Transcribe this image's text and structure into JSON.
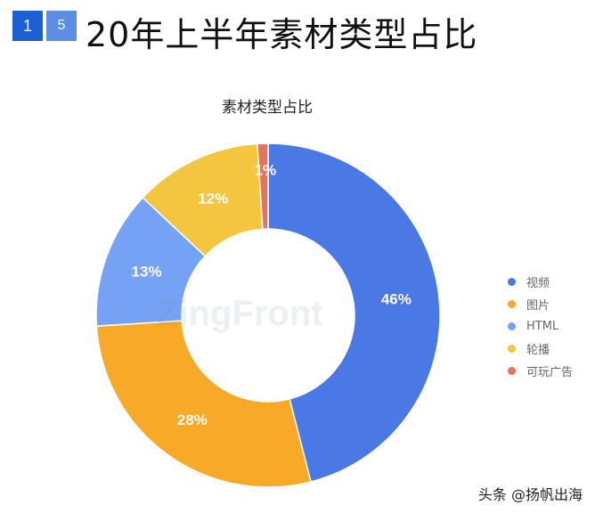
{
  "header": {
    "badge_1": "1",
    "badge_2": "5",
    "title": "20年上半年素材类型占比"
  },
  "watermark": "ZingFront",
  "footer": "头条 @扬帆出海",
  "chart_data": {
    "type": "pie",
    "title": "素材类型占比",
    "donut": true,
    "legend_position": "right",
    "slices": [
      {
        "name": "视频",
        "value": 46,
        "label": "46%",
        "color": "#4a78e4"
      },
      {
        "name": "图片",
        "value": 28,
        "label": "28%",
        "color": "#f9a928"
      },
      {
        "name": "HTML",
        "value": 13,
        "label": "13%",
        "color": "#76a2f5"
      },
      {
        "name": "轮播",
        "value": 12,
        "label": "12%",
        "color": "#f4c53f"
      },
      {
        "name": "可玩广告",
        "value": 1,
        "label": "1%",
        "color": "#e5745d"
      }
    ]
  }
}
